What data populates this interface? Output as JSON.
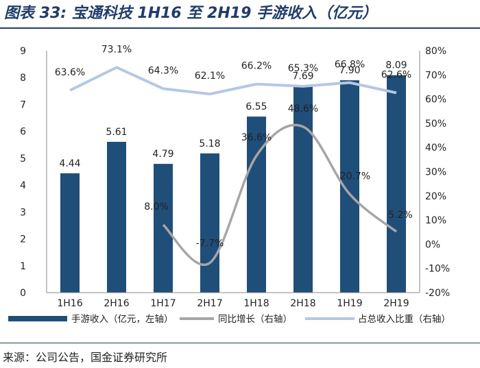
{
  "title": "图表 33:  宝通科技 1H16 至 2H19 手游收入（亿元）",
  "source": "来源：公司公告，国金证券研究所",
  "colors": {
    "bar": "#1f4e79",
    "yoy": "#a6a6a6",
    "share": "#b4c7e7",
    "title": "#1f3c6b"
  },
  "chart_data": {
    "type": "bar",
    "categories": [
      "1H16",
      "2H16",
      "1H17",
      "2H17",
      "1H18",
      "2H18",
      "1H19",
      "2H19"
    ],
    "series": [
      {
        "name": "手游收入（亿元，左轴）",
        "type": "bar",
        "axis": "left",
        "values": [
          4.44,
          5.61,
          4.79,
          5.18,
          6.55,
          7.69,
          7.9,
          8.09
        ],
        "labels": [
          "4.44",
          "5.61",
          "4.79",
          "5.18",
          "6.55",
          "7.69",
          "7.90",
          "8.09"
        ]
      },
      {
        "name": "同比增长（右轴）",
        "type": "line",
        "axis": "right",
        "smooth": true,
        "values": [
          null,
          null,
          8.0,
          -7.7,
          36.6,
          48.6,
          20.7,
          5.2
        ],
        "labels": [
          null,
          null,
          "8.0%",
          "-7.7%",
          "36.6%",
          "48.6%",
          "20.7%",
          "5.2%"
        ]
      },
      {
        "name": "占总收入比重（右轴）",
        "type": "line",
        "axis": "right",
        "values": [
          63.6,
          73.1,
          64.3,
          62.1,
          66.2,
          65.3,
          66.8,
          62.6
        ],
        "labels": [
          "63.6%",
          "73.1%",
          "64.3%",
          "62.1%",
          "66.2%",
          "65.3%",
          "66.8%",
          "62.6%"
        ]
      }
    ],
    "left_axis": {
      "min": 0,
      "max": 9,
      "step": 1,
      "ticks": [
        "0",
        "1",
        "2",
        "3",
        "4",
        "5",
        "6",
        "7",
        "8",
        "9"
      ]
    },
    "right_axis": {
      "min": -20,
      "max": 80,
      "step": 10,
      "ticks": [
        "-20%",
        "-10%",
        "0%",
        "10%",
        "20%",
        "30%",
        "40%",
        "50%",
        "60%",
        "70%",
        "80%"
      ]
    },
    "grid": false,
    "legend_position": "bottom"
  }
}
